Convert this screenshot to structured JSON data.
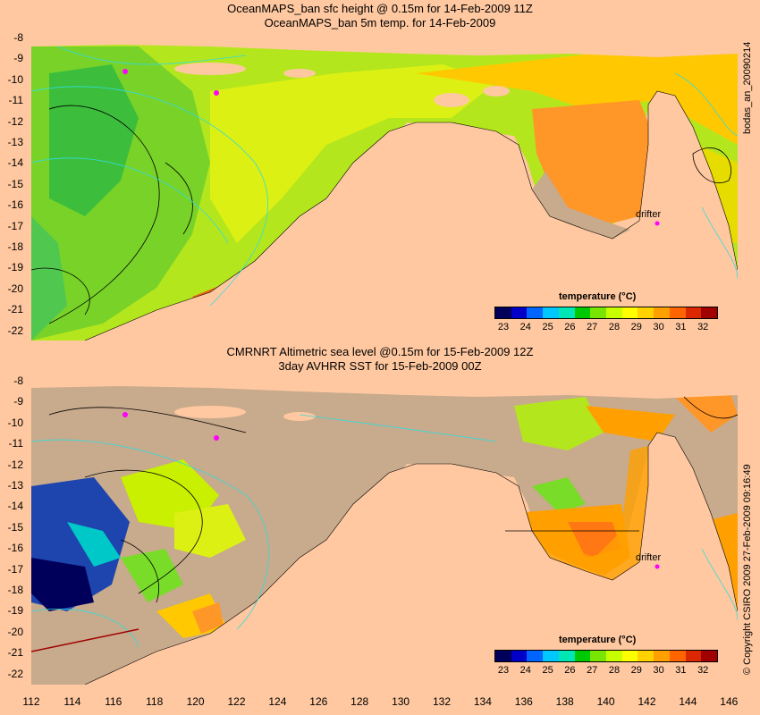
{
  "top": {
    "title_line1": "OceanMAPS_ban sfc height @ 0.15m for 14-Feb-2009 11Z",
    "title_line2": "OceanMAPS_ban 5m temp. for 14-Feb-2009",
    "side_label": "bodas_an_20090214",
    "drifter_label": "drifter",
    "colorbar_title": "temperature (°C)"
  },
  "bottom": {
    "title_line1": "CMRNRT Altimetric sea level  @0.15m  for 15-Feb-2009 12Z",
    "title_line2": "3day AVHRR SST for 15-Feb-2009 00Z",
    "side_label": "© Copyright CSIRO 2009   27-Feb-2009 09:16:49",
    "drifter_label": "drifter",
    "colorbar_title": "temperature (°C)"
  },
  "y_ticks": [
    "-8",
    "-9",
    "-10",
    "-11",
    "-12",
    "-13",
    "-14",
    "-15",
    "-16",
    "-17",
    "-18",
    "-19",
    "-20",
    "-21",
    "-22"
  ],
  "x_ticks": [
    "112",
    "114",
    "116",
    "118",
    "120",
    "122",
    "124",
    "126",
    "128",
    "130",
    "132",
    "134",
    "136",
    "138",
    "140",
    "142",
    "144",
    "146"
  ],
  "colorbar_ticks": [
    "23",
    "24",
    "25",
    "26",
    "27",
    "28",
    "29",
    "30",
    "31",
    "32"
  ],
  "colors": {
    "land": "#ffc8a0",
    "nodata_sea": "#c8aa8c",
    "drifter": "#ff00ff",
    "colorscale": [
      "#00005a",
      "#0000c8",
      "#0064ff",
      "#00c8ff",
      "#00e6b4",
      "#00c800",
      "#78e600",
      "#c8ff00",
      "#ffff00",
      "#ffd200",
      "#ffa000",
      "#ff6400",
      "#dc2800",
      "#a00000"
    ]
  },
  "map_extent": {
    "lon": [
      112,
      146.5
    ],
    "lat": [
      -22.5,
      -8
    ]
  }
}
